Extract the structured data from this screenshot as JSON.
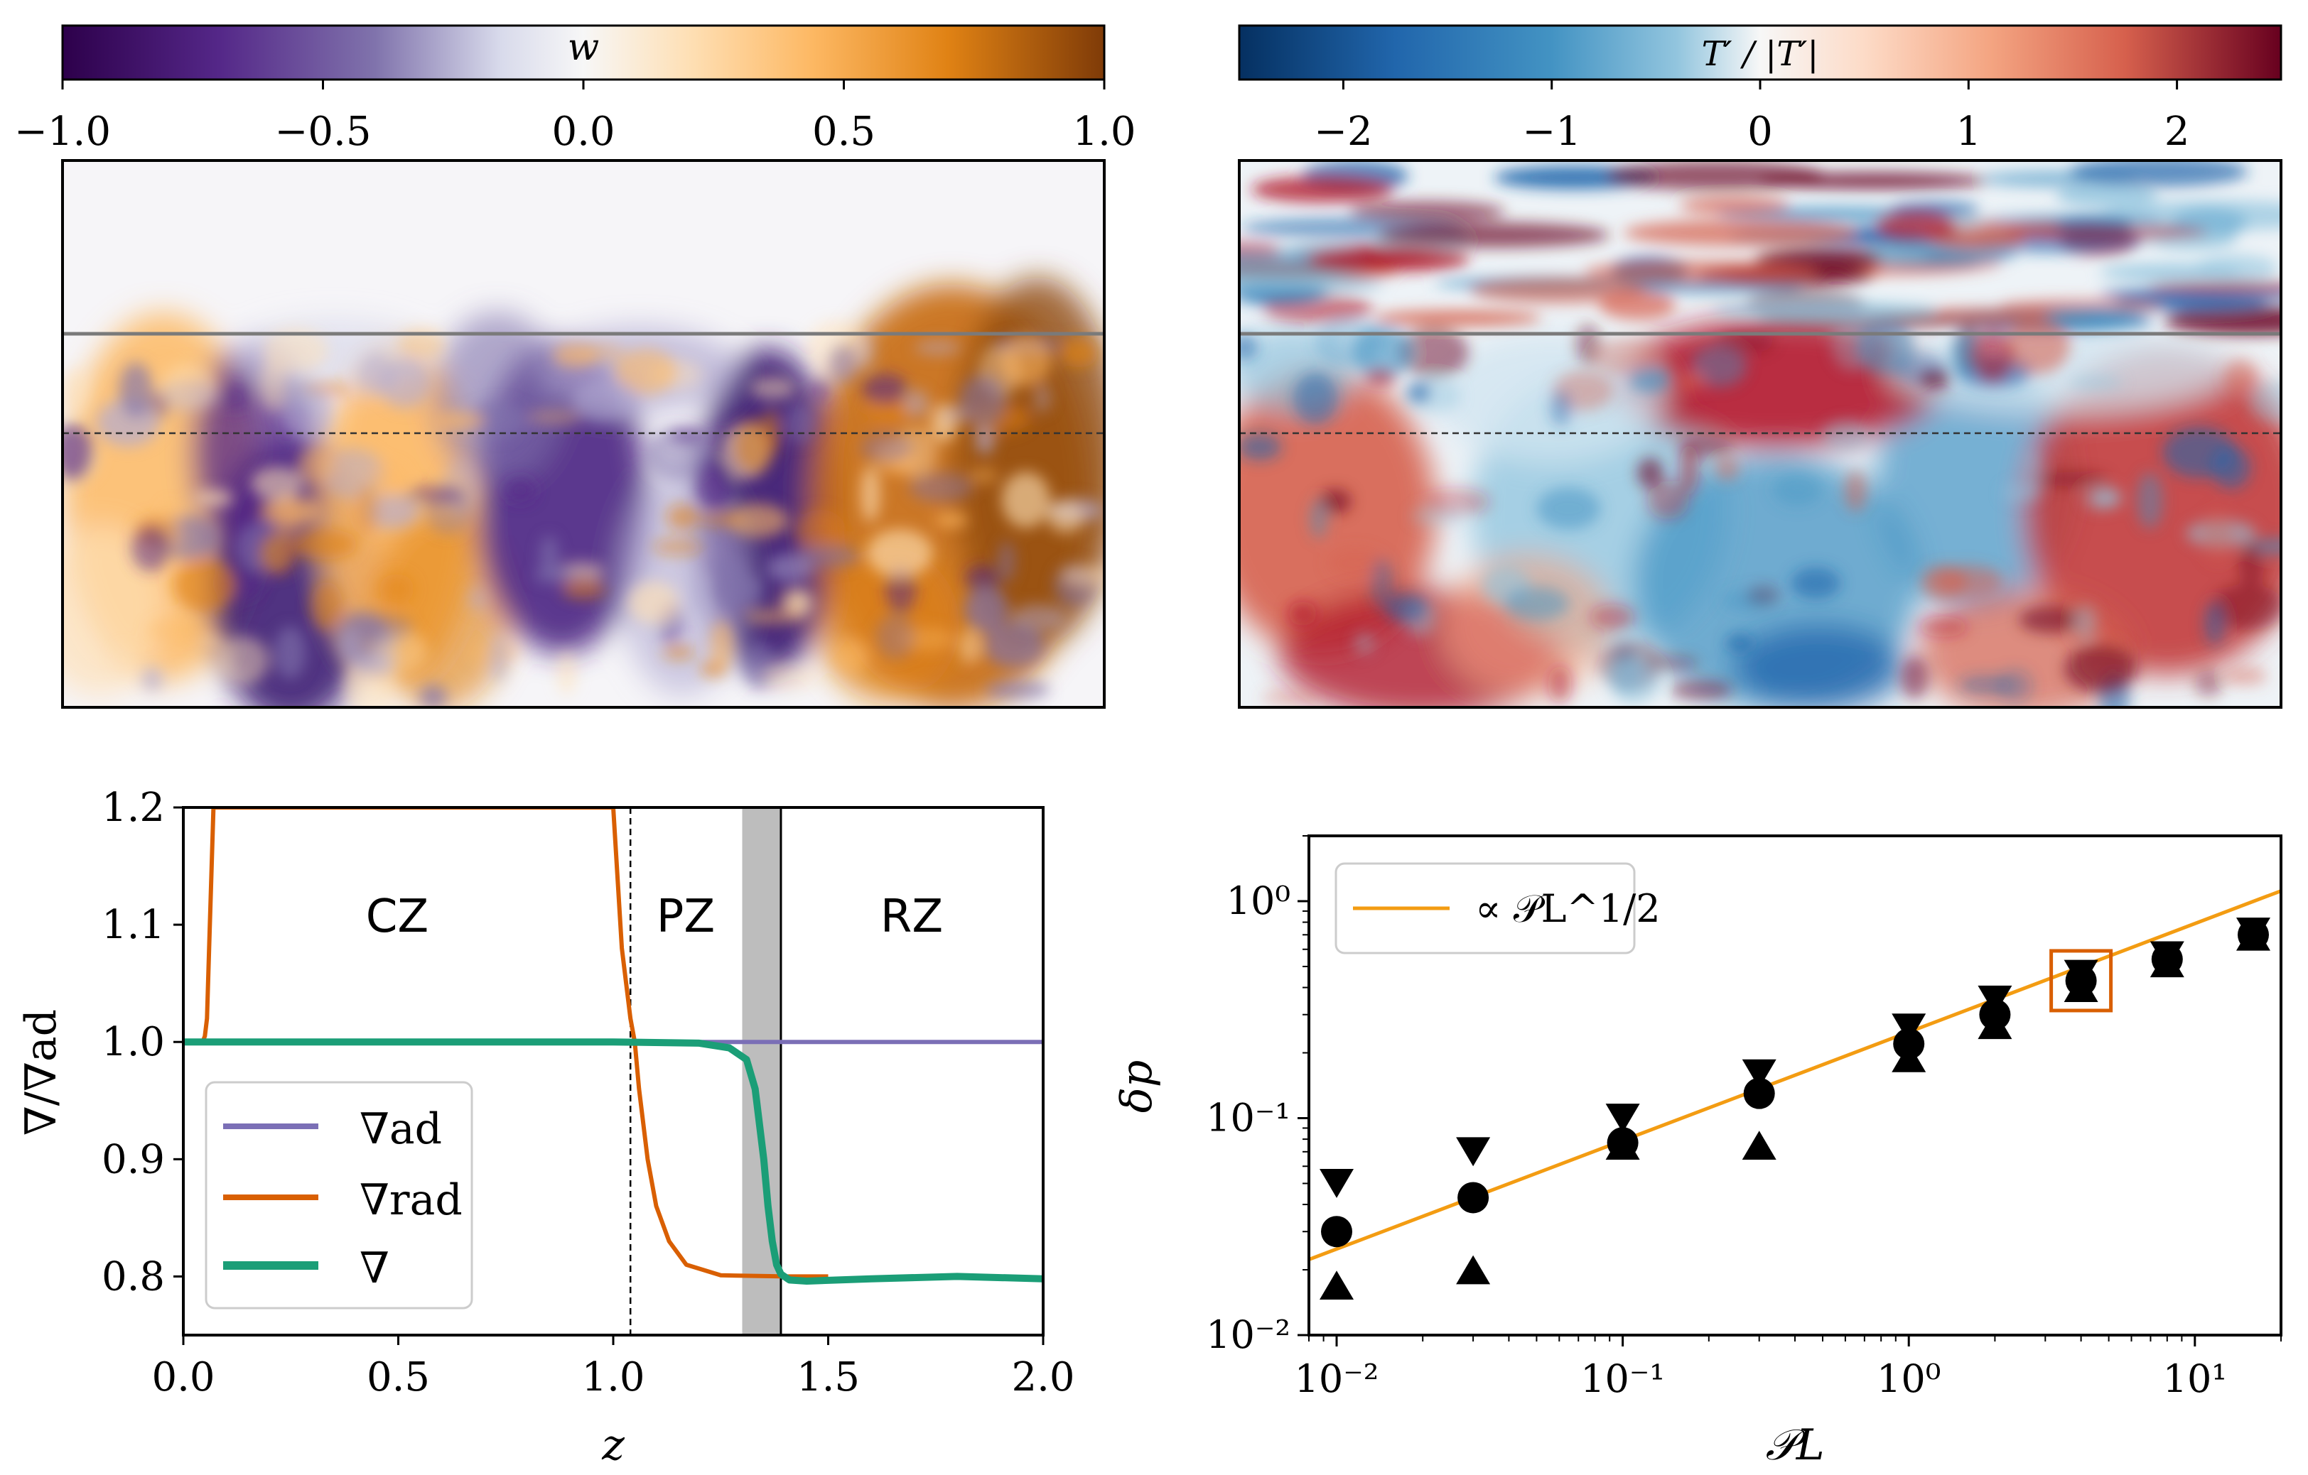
{
  "chart_data": [
    {
      "type": "heatmap",
      "id": "panel-w",
      "colorbar": {
        "label": "w",
        "ticks": [
          "−1.0",
          "−0.5",
          "0.0",
          "0.5",
          "1.0"
        ],
        "range": [
          -1,
          1
        ]
      },
      "colors": {
        "low": "#2d004b",
        "mid": "#f7f7f7",
        "high": "#7f3b08"
      }
    },
    {
      "type": "heatmap",
      "id": "panel-T",
      "colorbar": {
        "label": "T′ / |T′|",
        "ticks": [
          "−2",
          "−1",
          "0",
          "1",
          "2"
        ],
        "range": [
          -2.5,
          2.5
        ]
      },
      "colors": {
        "low": "#053061",
        "mid": "#f7f7f7",
        "high": "#67001f"
      }
    },
    {
      "type": "line",
      "id": "panel-gradients",
      "xlabel": "z",
      "ylabel": "∇/∇ad",
      "xlim": [
        0,
        2
      ],
      "ylim": [
        0.75,
        1.2
      ],
      "xticks": [
        "0.0",
        "0.5",
        "1.0",
        "1.5",
        "2.0"
      ],
      "yticks": [
        "0.8",
        "0.9",
        "1.0",
        "1.1",
        "1.2"
      ],
      "zone_labels": [
        "CZ",
        "PZ",
        "RZ"
      ],
      "series": [
        {
          "name": "∇ad",
          "color": "#7b6fb6",
          "x": [
            0,
            2
          ],
          "y": [
            1.0,
            1.0
          ]
        },
        {
          "name": "∇rad",
          "color": "#d95f02",
          "x": [
            0.045,
            0.05,
            0.055,
            0.06,
            0.07,
            0.1,
            0.3,
            0.6,
            0.9,
            1.0,
            1.02,
            1.04,
            1.05,
            1.06,
            1.08,
            1.1,
            1.13,
            1.17,
            1.25,
            1.4,
            1.5
          ],
          "y": [
            1.0,
            1.005,
            1.02,
            1.08,
            1.2,
            1.2,
            1.2,
            1.2,
            1.2,
            1.2,
            1.08,
            1.02,
            1.0,
            0.96,
            0.9,
            0.86,
            0.83,
            0.81,
            0.801,
            0.8,
            0.8
          ]
        },
        {
          "name": "∇",
          "color": "#1b9e77",
          "x": [
            0,
            0.5,
            1.0,
            1.2,
            1.27,
            1.31,
            1.33,
            1.35,
            1.36,
            1.37,
            1.38,
            1.39,
            1.41,
            1.45,
            1.6,
            1.8,
            2.0
          ],
          "y": [
            1.0,
            1.0,
            1.0,
            0.999,
            0.995,
            0.985,
            0.96,
            0.9,
            0.86,
            0.83,
            0.81,
            0.802,
            0.797,
            0.796,
            0.798,
            0.8,
            0.798
          ]
        }
      ],
      "dashed_vline_x": 1.04,
      "shaded_band_x": [
        1.3,
        1.39
      ]
    },
    {
      "type": "scatter",
      "id": "panel-delta",
      "xlabel": "𝒫L",
      "ylabel": "δp",
      "xscale": "log",
      "yscale": "log",
      "xlim": [
        0.008,
        20
      ],
      "ylim": [
        0.01,
        2
      ],
      "xticks": [
        0.01,
        0.1,
        1,
        10
      ],
      "yticks": [
        0.01,
        0.1,
        1
      ],
      "legend": {
        "label": "∝ 𝒫L^1/2",
        "position": "top-left"
      },
      "fit_line": {
        "color": "#f39c12",
        "x": [
          0.008,
          20
        ],
        "y": [
          0.0223,
          1.115
        ]
      },
      "x": [
        0.01,
        0.03,
        0.1,
        0.3,
        1,
        2,
        4,
        8,
        16
      ],
      "mean": [
        0.03,
        0.043,
        0.077,
        0.13,
        0.22,
        0.3,
        0.43,
        0.54,
        0.7
      ],
      "upper": [
        0.05,
        0.07,
        0.1,
        0.16,
        0.26,
        0.35,
        0.46,
        0.56,
        0.72
      ],
      "lower": [
        0.017,
        0.02,
        0.075,
        0.075,
        0.19,
        0.27,
        0.4,
        0.52,
        0.69
      ],
      "highlight_index": 6,
      "highlight_color": "#d95f02"
    }
  ]
}
